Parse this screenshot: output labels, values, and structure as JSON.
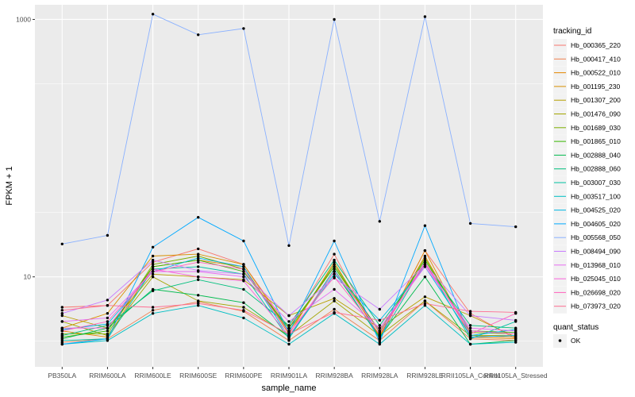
{
  "chart_data": {
    "type": "line",
    "xlabel": "sample_name",
    "ylabel": "FPKM + 1",
    "y_scale": "log10",
    "ylim": [
      2,
      1300
    ],
    "y_ticks": [
      10,
      1000
    ],
    "grid": true,
    "legend_placement": "right",
    "categories": [
      "PB350LA",
      "RRIM600LA",
      "RRIM600LE",
      "RRIM600SE",
      "RRIM600PE",
      "RRIM901LA",
      "RRIM928BA",
      "RRIM928LA",
      "RRIM928LE",
      "RRII105LA_Control",
      "RRII105LA_Stressed"
    ],
    "legend_title": "tracking_id",
    "series": [
      {
        "name": "Hb_000365_220",
        "color": "#F8766D",
        "values": [
          5.8,
          6.0,
          13.0,
          16.5,
          12.5,
          4.0,
          15.0,
          3.3,
          16.0,
          5.2,
          3.3
        ]
      },
      {
        "name": "Hb_000417_410",
        "color": "#F07F4E",
        "values": [
          3.1,
          3.3,
          5.5,
          6.4,
          5.4,
          3.2,
          5.6,
          3.2,
          6.5,
          3.3,
          3.2
        ]
      },
      {
        "name": "Hb_000522_010",
        "color": "#E58700",
        "values": [
          3.8,
          3.4,
          12.0,
          13.5,
          12.0,
          3.6,
          13.0,
          3.4,
          16.0,
          3.4,
          3.3
        ]
      },
      {
        "name": "Hb_001195_230",
        "color": "#D89000",
        "values": [
          4.0,
          5.2,
          14.5,
          15.0,
          12.5,
          3.8,
          12.0,
          3.5,
          14.5,
          3.5,
          3.4
        ]
      },
      {
        "name": "Hb_001307_200",
        "color": "#B79F00",
        "values": [
          5.0,
          4.0,
          10.5,
          10.0,
          9.5,
          5.0,
          6.8,
          4.0,
          7.0,
          5.0,
          3.4
        ]
      },
      {
        "name": "Hb_001476_090",
        "color": "#A3A500",
        "values": [
          4.5,
          3.5,
          10.0,
          6.5,
          5.8,
          3.5,
          6.5,
          3.5,
          6.5,
          3.5,
          3.5
        ]
      },
      {
        "name": "Hb_001689_030",
        "color": "#7CAE00",
        "values": [
          3.6,
          3.6,
          12.5,
          14.5,
          11.5,
          3.8,
          12.5,
          3.7,
          14.0,
          3.7,
          3.6
        ]
      },
      {
        "name": "Hb_001865_010",
        "color": "#39B600",
        "values": [
          3.4,
          3.8,
          12.0,
          13.5,
          11.0,
          4.0,
          12.0,
          3.8,
          13.5,
          3.8,
          3.7
        ]
      },
      {
        "name": "Hb_002888_040",
        "color": "#00BB4E",
        "values": [
          3.3,
          4.0,
          8.0,
          7.2,
          6.3,
          3.4,
          11.0,
          3.4,
          10.0,
          3.0,
          3.2
        ]
      },
      {
        "name": "Hb_002888_060",
        "color": "#00BF7D",
        "values": [
          3.5,
          4.2,
          7.8,
          9.5,
          8.0,
          4.2,
          13.5,
          4.2,
          12.5,
          4.2,
          4.0
        ]
      },
      {
        "name": "Hb_003007_030",
        "color": "#00C1A3",
        "values": [
          3.2,
          3.3,
          11.5,
          12.0,
          10.5,
          3.3,
          11.5,
          3.3,
          13.0,
          3.3,
          4.5
        ]
      },
      {
        "name": "Hb_003517_100",
        "color": "#00BFC4",
        "values": [
          3.0,
          3.2,
          5.2,
          6.0,
          4.8,
          3.0,
          5.2,
          3.0,
          6.0,
          3.0,
          3.1
        ]
      },
      {
        "name": "Hb_004525_020",
        "color": "#00B8E5",
        "values": [
          3.9,
          4.3,
          11.0,
          14.0,
          12.0,
          3.4,
          10.5,
          4.6,
          12.0,
          3.5,
          3.9
        ]
      },
      {
        "name": "Hb_004605_020",
        "color": "#00A9FF",
        "values": [
          3.0,
          3.3,
          17.0,
          29.0,
          19.0,
          3.7,
          19.0,
          3.1,
          25.0,
          3.4,
          3.5
        ]
      },
      {
        "name": "Hb_005568_050",
        "color": "#8AB1FF",
        "values": [
          18.0,
          21.0,
          1100.0,
          760.0,
          850.0,
          17.5,
          1000.0,
          27.0,
          1050.0,
          26.0,
          24.5
        ]
      },
      {
        "name": "Hb_008494_090",
        "color": "#C77CFF",
        "values": [
          5.2,
          6.6,
          13.5,
          11.2,
          10.5,
          5.0,
          9.8,
          5.6,
          12.5,
          5.0,
          4.6
        ]
      },
      {
        "name": "Hb_013968_010",
        "color": "#E76BF3",
        "values": [
          4.5,
          4.8,
          11.0,
          11.0,
          10.0,
          4.5,
          8.0,
          4.0,
          12.0,
          4.0,
          3.8
        ]
      },
      {
        "name": "Hb_025045_010",
        "color": "#FA62DB",
        "values": [
          4.0,
          4.0,
          11.5,
          10.0,
          9.3,
          3.5,
          11.0,
          3.8,
          12.5,
          3.8,
          3.6
        ]
      },
      {
        "name": "Hb_026698_020",
        "color": "#FF62BC",
        "values": [
          3.8,
          4.5,
          11.0,
          13.0,
          11.5,
          3.7,
          10.0,
          3.6,
          13.0,
          3.6,
          5.2
        ]
      },
      {
        "name": "Hb_073973_020",
        "color": "#FF6C91",
        "values": [
          5.5,
          6.0,
          5.8,
          6.2,
          5.5,
          3.6,
          5.3,
          4.6,
          6.2,
          5.4,
          5.3
        ]
      }
    ],
    "shape_legend": {
      "title": "quant_status",
      "entries": [
        "OK"
      ]
    }
  },
  "colors": {
    "panel_background": "#EBEBEB",
    "grid": "#FFFFFF",
    "point": "#000000"
  }
}
